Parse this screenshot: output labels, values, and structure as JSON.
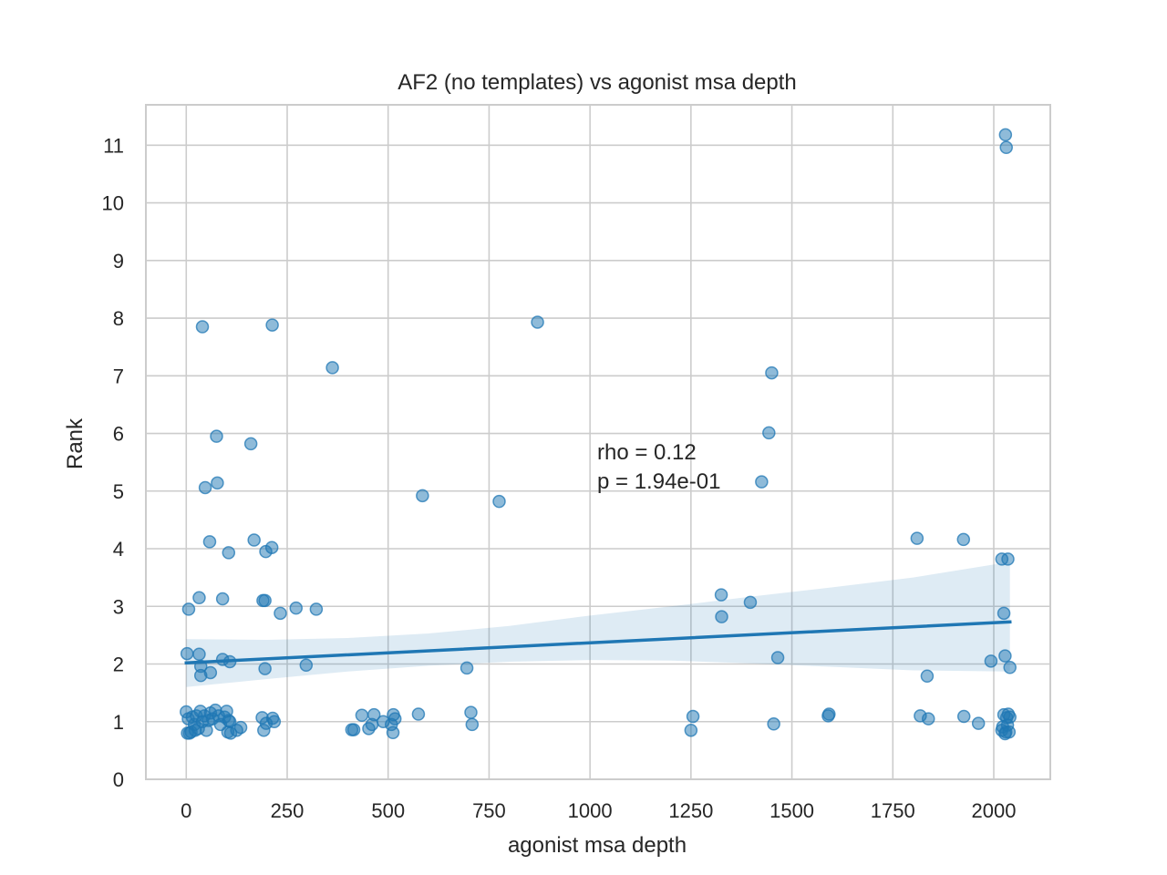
{
  "chart_data": {
    "type": "scatter",
    "title": "AF2 (no templates) vs agonist msa depth",
    "xlabel": "agonist msa depth",
    "ylabel": "Rank",
    "xlim": [
      -100,
      2140
    ],
    "ylim": [
      0,
      11.7
    ],
    "x_ticks": [
      0,
      250,
      500,
      750,
      1000,
      1250,
      1500,
      1750,
      2000
    ],
    "y_ticks": [
      0,
      1,
      2,
      3,
      4,
      5,
      6,
      7,
      8,
      9,
      10,
      11
    ],
    "grid": true,
    "colors": {
      "points": "#1f77b4",
      "line": "#1f77b4",
      "band": "#1f77b4",
      "grid": "#cccccc",
      "spine": "#cccccc"
    },
    "annotation": [
      "rho = 0.12",
      "p = 1.94e-01"
    ],
    "regression": {
      "x": [
        0,
        2040
      ],
      "y": [
        2.02,
        2.73
      ]
    },
    "confidence_band": {
      "x": [
        0,
        200,
        400,
        600,
        800,
        1000,
        1200,
        1400,
        1600,
        1800,
        2040
      ],
      "lower": [
        1.6,
        1.74,
        1.87,
        1.97,
        2.04,
        2.07,
        2.06,
        2.01,
        1.95,
        1.89,
        1.87
      ],
      "upper": [
        2.43,
        2.42,
        2.45,
        2.53,
        2.66,
        2.84,
        3.0,
        3.17,
        3.33,
        3.5,
        3.77
      ]
    },
    "points": [
      [
        40,
        7.85
      ],
      [
        213,
        7.88
      ],
      [
        362,
        7.14
      ],
      [
        870,
        7.93
      ],
      [
        1450,
        7.05
      ],
      [
        75,
        5.95
      ],
      [
        160,
        5.82
      ],
      [
        1443,
        6.01
      ],
      [
        47,
        5.06
      ],
      [
        77,
        5.14
      ],
      [
        585,
        4.92
      ],
      [
        775,
        4.82
      ],
      [
        1425,
        5.16
      ],
      [
        58,
        4.12
      ],
      [
        105,
        3.93
      ],
      [
        168,
        4.15
      ],
      [
        197,
        3.95
      ],
      [
        212,
        4.02
      ],
      [
        1810,
        4.18
      ],
      [
        1925,
        4.16
      ],
      [
        2020,
        3.82
      ],
      [
        2035,
        3.82
      ],
      [
        6,
        2.95
      ],
      [
        32,
        3.15
      ],
      [
        90,
        3.13
      ],
      [
        190,
        3.1
      ],
      [
        195,
        3.1
      ],
      [
        233,
        2.88
      ],
      [
        272,
        2.97
      ],
      [
        322,
        2.95
      ],
      [
        1325,
        3.2
      ],
      [
        1326,
        2.82
      ],
      [
        1397,
        3.07
      ],
      [
        2025,
        2.88
      ],
      [
        2,
        2.18
      ],
      [
        32,
        2.17
      ],
      [
        36,
        1.96
      ],
      [
        36,
        1.8
      ],
      [
        60,
        1.85
      ],
      [
        90,
        2.08
      ],
      [
        108,
        2.04
      ],
      [
        195,
        1.92
      ],
      [
        297,
        1.98
      ],
      [
        695,
        1.93
      ],
      [
        1465,
        2.11
      ],
      [
        1835,
        1.79
      ],
      [
        1993,
        2.05
      ],
      [
        2028,
        2.14
      ],
      [
        2040,
        1.94
      ],
      [
        0,
        1.17
      ],
      [
        3,
        0.8
      ],
      [
        5,
        1.05
      ],
      [
        8,
        0.8
      ],
      [
        12,
        0.82
      ],
      [
        15,
        1.08
      ],
      [
        20,
        0.95
      ],
      [
        22,
        0.85
      ],
      [
        25,
        1.1
      ],
      [
        30,
        0.88
      ],
      [
        35,
        1.18
      ],
      [
        40,
        1.0
      ],
      [
        45,
        1.1
      ],
      [
        50,
        0.85
      ],
      [
        55,
        1.02
      ],
      [
        60,
        1.15
      ],
      [
        65,
        1.05
      ],
      [
        72,
        1.2
      ],
      [
        80,
        1.1
      ],
      [
        85,
        0.95
      ],
      [
        95,
        1.08
      ],
      [
        100,
        1.18
      ],
      [
        103,
        0.82
      ],
      [
        105,
        1.02
      ],
      [
        108,
        1.0
      ],
      [
        110,
        0.8
      ],
      [
        125,
        0.85
      ],
      [
        135,
        0.9
      ],
      [
        188,
        1.07
      ],
      [
        192,
        0.85
      ],
      [
        198,
        0.97
      ],
      [
        214,
        1.06
      ],
      [
        218,
        1.0
      ],
      [
        410,
        0.86
      ],
      [
        415,
        0.86
      ],
      [
        435,
        1.11
      ],
      [
        452,
        0.88
      ],
      [
        460,
        0.95
      ],
      [
        465,
        1.12
      ],
      [
        488,
        1.0
      ],
      [
        508,
        0.95
      ],
      [
        512,
        0.81
      ],
      [
        513,
        1.12
      ],
      [
        517,
        1.05
      ],
      [
        575,
        1.13
      ],
      [
        705,
        1.16
      ],
      [
        708,
        0.95
      ],
      [
        1250,
        0.85
      ],
      [
        1255,
        1.09
      ],
      [
        1455,
        0.96
      ],
      [
        1590,
        1.1
      ],
      [
        1592,
        1.13
      ],
      [
        1818,
        1.1
      ],
      [
        1838,
        1.05
      ],
      [
        1926,
        1.09
      ],
      [
        1962,
        0.97
      ],
      [
        2020,
        0.85
      ],
      [
        2022,
        0.91
      ],
      [
        2025,
        1.12
      ],
      [
        2028,
        0.79
      ],
      [
        2030,
        0.82
      ],
      [
        2032,
        1.07
      ],
      [
        2034,
        0.94
      ],
      [
        2036,
        1.13
      ],
      [
        2038,
        0.82
      ],
      [
        2040,
        1.08
      ],
      [
        2029,
        11.18
      ],
      [
        2031,
        10.96
      ]
    ]
  }
}
